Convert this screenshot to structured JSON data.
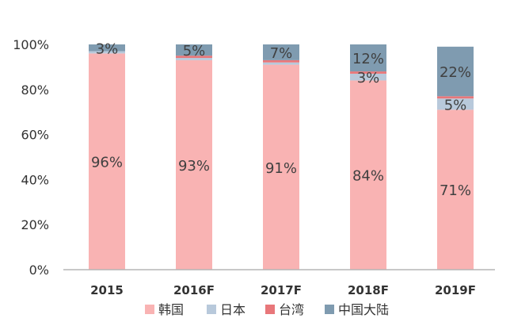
{
  "chart_data": {
    "type": "bar",
    "stacked": true,
    "categories": [
      "2015",
      "2016F",
      "2017F",
      "2018F",
      "2019F"
    ],
    "ylim": [
      0,
      100
    ],
    "yticks": [
      "0%",
      "20%",
      "40%",
      "60%",
      "80%",
      "100%"
    ],
    "grid": false,
    "legend_position": "bottom",
    "series": [
      {
        "name": "韩国",
        "color": "#F9B3B3",
        "values": [
          96,
          93,
          91,
          84,
          71
        ],
        "labels": [
          "96%",
          "93%",
          "91%",
          "84%",
          "71%"
        ]
      },
      {
        "name": "日本",
        "color": "#B8C9DB",
        "values": [
          1,
          1,
          1,
          3,
          5
        ],
        "labels": [
          "",
          "",
          "",
          "3%",
          "5%"
        ]
      },
      {
        "name": "台湾",
        "color": "#E8777A",
        "values": [
          0,
          1,
          1,
          1,
          1
        ],
        "labels": [
          "",
          "",
          "",
          "",
          ""
        ]
      },
      {
        "name": "中国大陆",
        "color": "#7F9BB0",
        "values": [
          3,
          5,
          7,
          12,
          22
        ],
        "labels": [
          "3%",
          "5%",
          "7%",
          "12%",
          "22%"
        ]
      }
    ]
  }
}
